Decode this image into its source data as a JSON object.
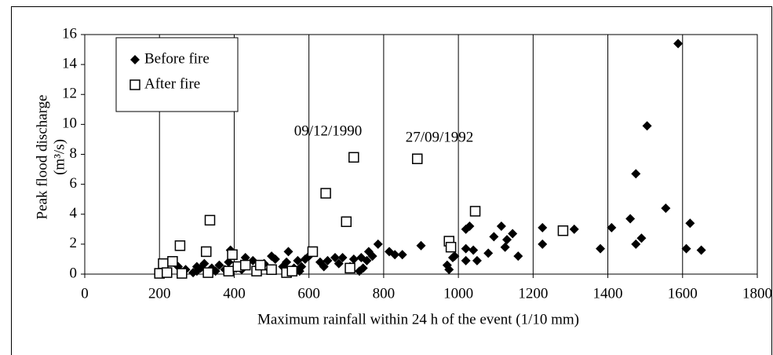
{
  "chart_data": {
    "type": "scatter",
    "y_label": [
      "Peak flood discharge",
      "(m³/s)"
    ],
    "x_label": "Maximum rainfall within 24 h of the event (1/10 mm)",
    "annotations": [
      "09/12/1990",
      "27/09/1992"
    ],
    "xlim": [
      0,
      1800
    ],
    "xticks": [
      0,
      200,
      400,
      600,
      800,
      1000,
      1200,
      1400,
      1600,
      1800
    ],
    "ylim": [
      0,
      16
    ],
    "yticks": [
      0,
      2,
      4,
      6,
      8,
      10,
      12,
      14,
      16
    ],
    "grid": "x",
    "legend": "upper left",
    "series": [
      {
        "name": "Before fire",
        "color": "#000000",
        "marker": "diamond",
        "x": [
          1588,
          1505,
          1475,
          1555,
          1460,
          1620,
          1410,
          1310,
          1225,
          1225,
          1380,
          1475,
          1490,
          1610,
          1650,
          1160,
          1145,
          1130,
          1115,
          1095,
          1080,
          1125,
          1050,
          1040,
          1030,
          1020,
          1020,
          1020,
          990,
          975,
          970,
          985,
          900,
          850,
          830,
          815,
          785,
          770,
          760,
          755,
          745,
          735,
          740,
          720,
          710,
          690,
          680,
          670,
          650,
          640,
          630,
          600,
          590,
          580,
          575,
          570,
          560,
          545,
          540,
          530,
          510,
          500,
          495,
          480,
          465,
          450,
          430,
          420,
          405,
          390,
          385,
          375,
          360,
          350,
          340,
          330,
          320,
          310,
          300,
          300,
          290,
          270,
          250
        ],
        "values": [
          15.4,
          9.9,
          6.7,
          4.4,
          3.7,
          3.4,
          3.1,
          3.0,
          3.1,
          2.0,
          1.7,
          2.0,
          2.4,
          1.7,
          1.6,
          1.2,
          2.7,
          2.3,
          3.2,
          2.5,
          1.4,
          1.8,
          0.9,
          1.6,
          3.2,
          3.0,
          1.7,
          0.9,
          1.2,
          0.3,
          0.6,
          1.1,
          1.9,
          1.3,
          1.3,
          1.5,
          2.0,
          1.2,
          1.5,
          0.9,
          0.4,
          0.2,
          1.1,
          1.0,
          0.5,
          1.1,
          0.7,
          1.1,
          0.9,
          0.5,
          0.8,
          1.2,
          1.0,
          0.5,
          0.2,
          0.9,
          0.4,
          1.5,
          0.8,
          0.5,
          1.0,
          1.2,
          0.3,
          0.7,
          0.5,
          0.9,
          1.1,
          0.3,
          0.4,
          1.6,
          0.8,
          0.3,
          0.6,
          0.2,
          0.4,
          0.1,
          0.7,
          0.4,
          0.2,
          0.5,
          0.1,
          0.3,
          0.5
        ]
      },
      {
        "name": "After fire",
        "color": "#000000",
        "marker": "square",
        "x": [
          200,
          210,
          220,
          235,
          255,
          260,
          325,
          335,
          330,
          385,
          395,
          410,
          430,
          460,
          470,
          500,
          540,
          555,
          610,
          645,
          700,
          710,
          720,
          890,
          975,
          980,
          1045,
          1280
        ],
        "values": [
          0.05,
          0.7,
          0.1,
          0.85,
          1.9,
          0.05,
          1.5,
          3.6,
          0.1,
          0.2,
          1.3,
          0.5,
          0.6,
          0.2,
          0.6,
          0.3,
          0.1,
          0.2,
          1.5,
          5.4,
          3.5,
          0.4,
          7.8,
          7.7,
          2.2,
          1.8,
          4.2,
          2.9
        ]
      }
    ]
  }
}
